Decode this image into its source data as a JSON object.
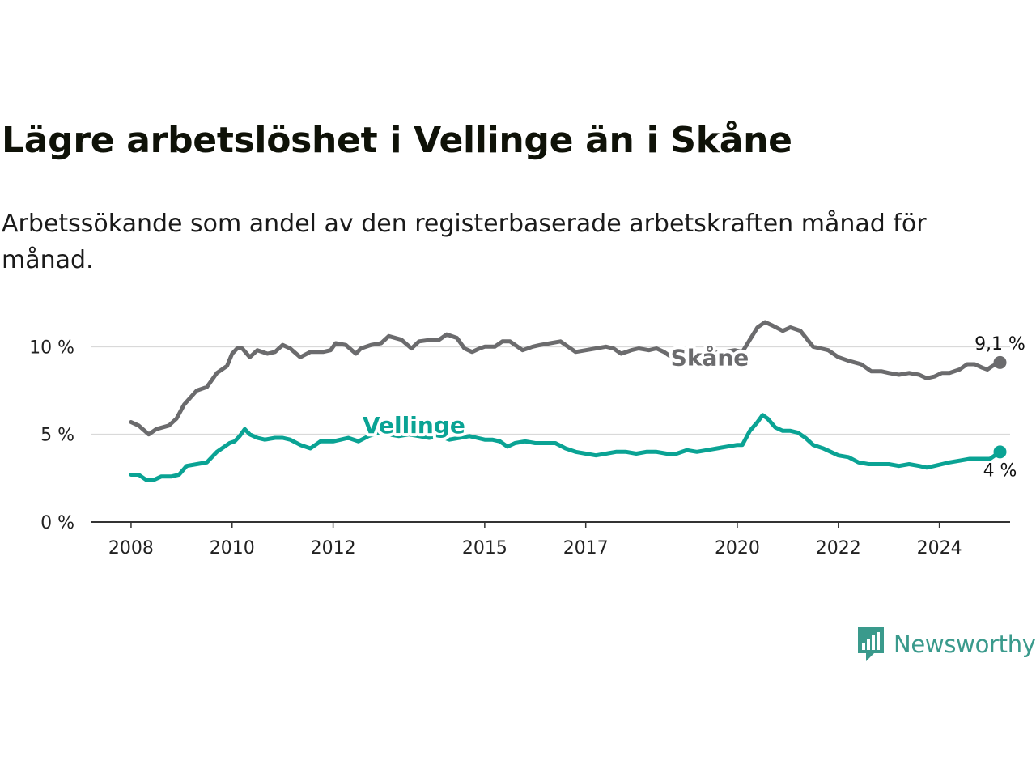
{
  "chart_data": {
    "type": "line",
    "title": "Lägre arbetslöshet i Vellinge än i Skåne",
    "subtitle": "Arbetssökande som andel av den registerbaserade arbetskraften månad för månad.",
    "xlabel": "",
    "ylabel": "",
    "ylim": [
      0,
      12
    ],
    "xlim": [
      2007.2,
      2025.4
    ],
    "yticks": [
      {
        "value": 0,
        "label": "0 %"
      },
      {
        "value": 5,
        "label": "5 %"
      },
      {
        "value": 10,
        "label": "10 %"
      }
    ],
    "xticks": [
      {
        "value": 2008,
        "label": "2008"
      },
      {
        "value": 2010,
        "label": "2010"
      },
      {
        "value": 2012,
        "label": "2012"
      },
      {
        "value": 2015,
        "label": "2015"
      },
      {
        "value": 2017,
        "label": "2017"
      },
      {
        "value": 2020,
        "label": "2020"
      },
      {
        "value": 2022,
        "label": "2022"
      },
      {
        "value": 2024,
        "label": "2024"
      }
    ],
    "series": [
      {
        "name": "Skåne",
        "color": "#6b6b6d",
        "end_label": "9,1 %",
        "points": [
          [
            2008.0,
            5.7
          ],
          [
            2008.15,
            5.5
          ],
          [
            2008.35,
            5.0
          ],
          [
            2008.5,
            5.3
          ],
          [
            2008.75,
            5.5
          ],
          [
            2008.9,
            5.9
          ],
          [
            2009.05,
            6.7
          ],
          [
            2009.3,
            7.5
          ],
          [
            2009.5,
            7.7
          ],
          [
            2009.7,
            8.5
          ],
          [
            2009.9,
            8.9
          ],
          [
            2010.0,
            9.6
          ],
          [
            2010.1,
            9.9
          ],
          [
            2010.2,
            9.9
          ],
          [
            2010.35,
            9.4
          ],
          [
            2010.5,
            9.8
          ],
          [
            2010.7,
            9.6
          ],
          [
            2010.85,
            9.7
          ],
          [
            2011.0,
            10.1
          ],
          [
            2011.15,
            9.9
          ],
          [
            2011.35,
            9.4
          ],
          [
            2011.55,
            9.7
          ],
          [
            2011.8,
            9.7
          ],
          [
            2011.95,
            9.8
          ],
          [
            2012.05,
            10.2
          ],
          [
            2012.25,
            10.1
          ],
          [
            2012.45,
            9.6
          ],
          [
            2012.55,
            9.9
          ],
          [
            2012.75,
            10.1
          ],
          [
            2012.95,
            10.2
          ],
          [
            2013.1,
            10.6
          ],
          [
            2013.35,
            10.4
          ],
          [
            2013.55,
            9.9
          ],
          [
            2013.7,
            10.3
          ],
          [
            2013.95,
            10.4
          ],
          [
            2014.1,
            10.4
          ],
          [
            2014.25,
            10.7
          ],
          [
            2014.45,
            10.5
          ],
          [
            2014.6,
            9.9
          ],
          [
            2014.75,
            9.7
          ],
          [
            2014.9,
            9.9
          ],
          [
            2015.0,
            10.0
          ],
          [
            2015.2,
            10.0
          ],
          [
            2015.35,
            10.3
          ],
          [
            2015.5,
            10.3
          ],
          [
            2015.75,
            9.8
          ],
          [
            2015.95,
            10.0
          ],
          [
            2016.1,
            10.1
          ],
          [
            2016.3,
            10.2
          ],
          [
            2016.5,
            10.3
          ],
          [
            2016.65,
            10.0
          ],
          [
            2016.8,
            9.7
          ],
          [
            2017.0,
            9.8
          ],
          [
            2017.2,
            9.9
          ],
          [
            2017.4,
            10.0
          ],
          [
            2017.55,
            9.9
          ],
          [
            2017.7,
            9.6
          ],
          [
            2017.9,
            9.8
          ],
          [
            2018.05,
            9.9
          ],
          [
            2018.25,
            9.8
          ],
          [
            2018.4,
            9.9
          ],
          [
            2018.55,
            9.7
          ],
          [
            2018.65,
            9.5
          ],
          [
            2019.25,
            9.6
          ],
          [
            2019.5,
            9.7
          ],
          [
            2019.75,
            9.7
          ],
          [
            2019.95,
            9.8
          ],
          [
            2020.1,
            9.7
          ],
          [
            2020.25,
            10.4
          ],
          [
            2020.4,
            11.1
          ],
          [
            2020.55,
            11.4
          ],
          [
            2020.7,
            11.2
          ],
          [
            2020.9,
            10.9
          ],
          [
            2021.05,
            11.1
          ],
          [
            2021.25,
            10.9
          ],
          [
            2021.5,
            10.0
          ],
          [
            2021.8,
            9.8
          ],
          [
            2022.0,
            9.4
          ],
          [
            2022.2,
            9.2
          ],
          [
            2022.45,
            9.0
          ],
          [
            2022.65,
            8.6
          ],
          [
            2022.85,
            8.6
          ],
          [
            2023.0,
            8.5
          ],
          [
            2023.2,
            8.4
          ],
          [
            2023.4,
            8.5
          ],
          [
            2023.6,
            8.4
          ],
          [
            2023.75,
            8.2
          ],
          [
            2023.9,
            8.3
          ],
          [
            2024.05,
            8.5
          ],
          [
            2024.2,
            8.5
          ],
          [
            2024.4,
            8.7
          ],
          [
            2024.55,
            9.0
          ],
          [
            2024.7,
            9.0
          ],
          [
            2024.85,
            8.8
          ],
          [
            2024.95,
            8.7
          ],
          [
            2025.05,
            8.9
          ],
          [
            2025.2,
            9.1
          ]
        ]
      },
      {
        "name": "Vellinge",
        "color": "#0aa394",
        "end_label": "4 %",
        "points": [
          [
            2008.0,
            2.7
          ],
          [
            2008.15,
            2.7
          ],
          [
            2008.3,
            2.4
          ],
          [
            2008.45,
            2.4
          ],
          [
            2008.6,
            2.6
          ],
          [
            2008.8,
            2.6
          ],
          [
            2008.95,
            2.7
          ],
          [
            2009.1,
            3.2
          ],
          [
            2009.3,
            3.3
          ],
          [
            2009.5,
            3.4
          ],
          [
            2009.7,
            4.0
          ],
          [
            2009.85,
            4.3
          ],
          [
            2009.95,
            4.5
          ],
          [
            2010.05,
            4.6
          ],
          [
            2010.15,
            4.9
          ],
          [
            2010.25,
            5.3
          ],
          [
            2010.35,
            5.0
          ],
          [
            2010.5,
            4.8
          ],
          [
            2010.65,
            4.7
          ],
          [
            2010.85,
            4.8
          ],
          [
            2011.0,
            4.8
          ],
          [
            2011.15,
            4.7
          ],
          [
            2011.35,
            4.4
          ],
          [
            2011.55,
            4.2
          ],
          [
            2011.75,
            4.6
          ],
          [
            2012.0,
            4.6
          ],
          [
            2012.15,
            4.7
          ],
          [
            2012.3,
            4.8
          ],
          [
            2012.5,
            4.6
          ],
          [
            2012.7,
            4.9
          ],
          [
            2012.9,
            5.1
          ],
          [
            2013.1,
            5.0
          ],
          [
            2013.3,
            4.9
          ],
          [
            2013.5,
            5.0
          ],
          [
            2013.7,
            4.9
          ],
          [
            2013.9,
            4.8
          ],
          [
            2014.1,
            4.9
          ],
          [
            2014.3,
            4.7
          ],
          [
            2014.5,
            4.8
          ],
          [
            2014.7,
            4.9
          ],
          [
            2014.85,
            4.8
          ],
          [
            2015.0,
            4.7
          ],
          [
            2015.15,
            4.7
          ],
          [
            2015.3,
            4.6
          ],
          [
            2015.45,
            4.3
          ],
          [
            2015.6,
            4.5
          ],
          [
            2015.8,
            4.6
          ],
          [
            2016.0,
            4.5
          ],
          [
            2016.2,
            4.5
          ],
          [
            2016.4,
            4.5
          ],
          [
            2016.6,
            4.2
          ],
          [
            2016.8,
            4.0
          ],
          [
            2017.0,
            3.9
          ],
          [
            2017.2,
            3.8
          ],
          [
            2017.4,
            3.9
          ],
          [
            2017.6,
            4.0
          ],
          [
            2017.8,
            4.0
          ],
          [
            2018.0,
            3.9
          ],
          [
            2018.2,
            4.0
          ],
          [
            2018.4,
            4.0
          ],
          [
            2018.6,
            3.9
          ],
          [
            2018.8,
            3.9
          ],
          [
            2019.0,
            4.1
          ],
          [
            2019.2,
            4.0
          ],
          [
            2019.4,
            4.1
          ],
          [
            2019.6,
            4.2
          ],
          [
            2019.8,
            4.3
          ],
          [
            2020.0,
            4.4
          ],
          [
            2020.1,
            4.4
          ],
          [
            2020.25,
            5.2
          ],
          [
            2020.4,
            5.7
          ],
          [
            2020.5,
            6.1
          ],
          [
            2020.6,
            5.9
          ],
          [
            2020.75,
            5.4
          ],
          [
            2020.9,
            5.2
          ],
          [
            2021.05,
            5.2
          ],
          [
            2021.2,
            5.1
          ],
          [
            2021.35,
            4.8
          ],
          [
            2021.5,
            4.4
          ],
          [
            2021.7,
            4.2
          ],
          [
            2021.85,
            4.0
          ],
          [
            2022.0,
            3.8
          ],
          [
            2022.2,
            3.7
          ],
          [
            2022.4,
            3.4
          ],
          [
            2022.6,
            3.3
          ],
          [
            2022.8,
            3.3
          ],
          [
            2023.0,
            3.3
          ],
          [
            2023.2,
            3.2
          ],
          [
            2023.4,
            3.3
          ],
          [
            2023.6,
            3.2
          ],
          [
            2023.75,
            3.1
          ],
          [
            2023.9,
            3.2
          ],
          [
            2024.05,
            3.3
          ],
          [
            2024.2,
            3.4
          ],
          [
            2024.4,
            3.5
          ],
          [
            2024.6,
            3.6
          ],
          [
            2024.8,
            3.6
          ],
          [
            2025.0,
            3.6
          ],
          [
            2025.2,
            4.0
          ]
        ]
      }
    ],
    "annotations": [
      {
        "series": "Skåne",
        "text": "Skåne",
        "x": 2018.65,
        "y": 9.4
      },
      {
        "series": "Vellinge",
        "text": "Vellinge",
        "x": 2012.55,
        "y": 5.55
      }
    ]
  },
  "branding": {
    "logo_icon": "newsworthy-bar-chart-icon",
    "name": "Newsworthy",
    "color": "#3a9a8c"
  }
}
